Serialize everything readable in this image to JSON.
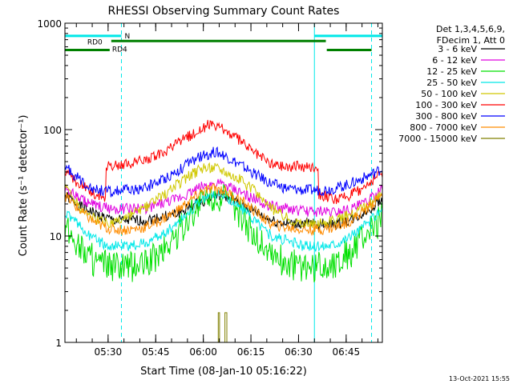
{
  "chart_data": {
    "type": "line",
    "title": "RHESSI Observing Summary Count Rates",
    "xlabel": "Start Time (08-Jan-10 05:16:22)",
    "ylabel": "Count Rate (s⁻¹ detector⁻¹)",
    "yscale": "log",
    "ylim": [
      1,
      1000
    ],
    "xlim_minutes": [
      0,
      100
    ],
    "grid": false,
    "legend_placement": "right",
    "y_ticks": [
      {
        "value": 1,
        "label": "1"
      },
      {
        "value": 10,
        "label": "10"
      },
      {
        "value": 100,
        "label": "100"
      },
      {
        "value": 1000,
        "label": "1000"
      }
    ],
    "x_ticks": [
      {
        "minute": 13.6,
        "label": "05:30"
      },
      {
        "minute": 28.6,
        "label": "05:45"
      },
      {
        "minute": 43.6,
        "label": "06:00"
      },
      {
        "minute": 58.6,
        "label": "06:15"
      },
      {
        "minute": 73.6,
        "label": "06:30"
      },
      {
        "minute": 88.6,
        "label": "06:45"
      }
    ],
    "legend_header": [
      "Det 1,3,4,5,6,9,",
      "FDecim 1, Att 0"
    ],
    "series": [
      {
        "name": "3 - 6 keV",
        "color": "#000000",
        "x": [
          0,
          5,
          10,
          15,
          20,
          25,
          30,
          35,
          40,
          43,
          47,
          50,
          55,
          60,
          65,
          70,
          75,
          80,
          85,
          90,
          95,
          100
        ],
        "y": [
          24,
          19,
          16,
          14,
          14,
          14,
          15,
          16,
          19,
          21,
          24,
          24,
          20,
          17,
          14,
          13,
          13,
          13,
          13,
          14,
          17,
          22
        ]
      },
      {
        "name": "6 - 12 keV",
        "color": "#e000e0",
        "x": [
          0,
          5,
          10,
          15,
          20,
          25,
          30,
          35,
          40,
          43,
          47,
          50,
          55,
          60,
          65,
          70,
          75,
          80,
          85,
          90,
          95,
          100
        ],
        "y": [
          28,
          22,
          19,
          18,
          18,
          18,
          20,
          22,
          26,
          29,
          31,
          30,
          26,
          22,
          19,
          18,
          17,
          17,
          17,
          18,
          21,
          27
        ]
      },
      {
        "name": "12 - 25 keV",
        "color": "#00e000",
        "x": [
          0,
          5,
          10,
          15,
          20,
          25,
          30,
          35,
          40,
          43,
          47,
          50,
          55,
          60,
          65,
          70,
          75,
          80,
          85,
          90,
          95,
          100
        ],
        "y": [
          12,
          8,
          5.5,
          5,
          5,
          5.5,
          7,
          10,
          16,
          21,
          24,
          22,
          16,
          10,
          7,
          5.5,
          5,
          5,
          5.5,
          7,
          10,
          15
        ]
      },
      {
        "name": "25 - 50 keV",
        "color": "#00e8e8",
        "x": [
          0,
          5,
          10,
          15,
          20,
          25,
          30,
          35,
          40,
          43,
          47,
          50,
          55,
          60,
          65,
          70,
          75,
          80,
          85,
          90,
          95,
          100
        ],
        "y": [
          17,
          12,
          9,
          8,
          8,
          8.5,
          10,
          13,
          18,
          22,
          25,
          24,
          19,
          14,
          10,
          9,
          8,
          8,
          8.5,
          10,
          13,
          18
        ]
      },
      {
        "name": "50 - 100 keV",
        "color": "#d0c800",
        "x": [
          0,
          5,
          10,
          15,
          20,
          25,
          30,
          35,
          40,
          43,
          47,
          50,
          55,
          60,
          65,
          70,
          75,
          80,
          85,
          90,
          95,
          100
        ],
        "y": [
          30,
          18,
          14,
          13,
          15,
          18,
          23,
          30,
          38,
          43,
          45,
          42,
          34,
          26,
          18,
          15,
          13,
          13,
          14,
          16,
          19,
          25
        ]
      },
      {
        "name": "100 - 300 keV",
        "color": "#ff0000",
        "x": [
          0,
          5,
          10,
          12.9,
          13,
          20,
          30,
          40,
          45,
          50,
          55,
          60,
          65,
          70,
          79.9,
          80,
          85,
          90,
          95,
          100
        ],
        "y": [
          40,
          30,
          24,
          22,
          45,
          47,
          58,
          90,
          110,
          100,
          80,
          60,
          48,
          45,
          45,
          25,
          22,
          24,
          30,
          40
        ]
      },
      {
        "name": "300 - 800 keV",
        "color": "#0000ff",
        "x": [
          0,
          5,
          10,
          15,
          20,
          25,
          30,
          35,
          40,
          43,
          47,
          50,
          55,
          60,
          65,
          70,
          75,
          80,
          85,
          90,
          95,
          100
        ],
        "y": [
          45,
          33,
          27,
          26,
          27,
          28,
          33,
          40,
          50,
          56,
          62,
          58,
          47,
          38,
          31,
          28,
          27,
          27,
          28,
          31,
          36,
          43
        ]
      },
      {
        "name": "800 - 7000 keV",
        "color": "#ff8c00",
        "x": [
          0,
          5,
          10,
          15,
          20,
          25,
          30,
          35,
          40,
          43,
          47,
          50,
          55,
          60,
          65,
          70,
          75,
          80,
          85,
          90,
          95,
          100
        ],
        "y": [
          24,
          17,
          13,
          11.5,
          11.5,
          12,
          14,
          17,
          22,
          26,
          28,
          27,
          22,
          17,
          13,
          12,
          11.5,
          11.5,
          12,
          14,
          18,
          24
        ]
      },
      {
        "name": "7000 - 15000 keV",
        "color": "#808000",
        "x": [
          48.3,
          48.3,
          48.7,
          48.7,
          50.4,
          50.4,
          51.0,
          51.0
        ],
        "y": [
          1,
          1.9,
          1.9,
          1,
          1,
          1.9,
          1.9,
          1
        ]
      }
    ],
    "annotations": [
      {
        "label": "N",
        "color": "#00e8e8",
        "y_value": 760,
        "segments": [
          [
            0,
            17.8
          ],
          [
            78.6,
            100
          ]
        ]
      },
      {
        "label": "RD0",
        "color": "#008000",
        "y_value": 680,
        "segments": [
          [
            14.6,
            82.2
          ]
        ]
      },
      {
        "label": "RD4",
        "color": "#008000",
        "y_value": 560,
        "segments": [
          [
            0,
            14.1
          ],
          [
            82.5,
            96.6
          ]
        ]
      }
    ],
    "vertical_markers": [
      {
        "minute": 17.8,
        "color": "#00e8e8",
        "style": "dashed"
      },
      {
        "minute": 78.6,
        "color": "#00e8e8",
        "style": "solid"
      },
      {
        "minute": 96.6,
        "color": "#00e8e8",
        "style": "dashed"
      },
      {
        "minute": 0,
        "color": "#00e8e8",
        "style": "solid"
      }
    ],
    "timestamp": "13-Oct-2021 15:55"
  }
}
